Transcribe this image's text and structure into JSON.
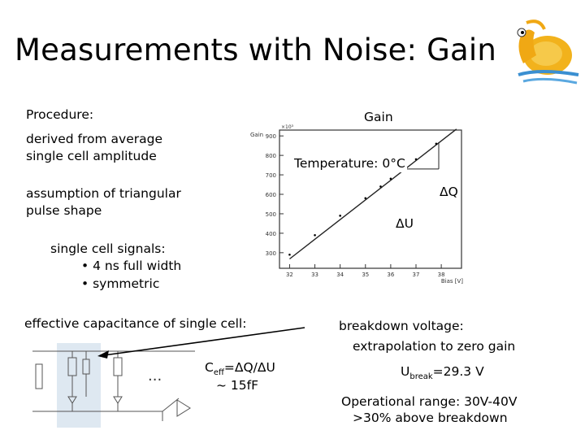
{
  "slide": {
    "title": "Measurements with Noise: Gain",
    "procedure_label": "Procedure:",
    "gain_label": "Gain",
    "derived_line1": "derived from average",
    "derived_line2": "single cell amplitude",
    "assumption_line1": "assumption of triangular",
    "assumption_line2": "pulse shape",
    "signals_heading": "single cell signals:",
    "signals_items": [
      "4 ns full width",
      "symmetric"
    ],
    "temperature": "Temperature: 0°C",
    "delta_q": "ΔQ",
    "delta_u": "ΔU",
    "capacitance_label": "effective capacitance of single cell:",
    "ceff_prefix": "C",
    "ceff_sub": "eff",
    "ceff_rest": "=ΔQ/ΔU",
    "ceff_value": "~ 15fF",
    "breakdown_label": "breakdown voltage:",
    "breakdown_detail": "extrapolation to zero gain",
    "ubreak_prefix": "U",
    "ubreak_sub": "break",
    "ubreak_rest": "=29.3 V",
    "operational_line1": "Operational range: 30V-40V",
    "operational_line2": ">30% above breakdown"
  },
  "chart_data": {
    "type": "line",
    "title": "",
    "xlabel": "Bias [V]",
    "ylabel": "Gain",
    "y_multiplier": "×10³",
    "x_ticks": [
      32,
      33,
      34,
      35,
      36,
      37,
      38
    ],
    "y_ticks": [
      300,
      400,
      500,
      600,
      700,
      800,
      900
    ],
    "xlim": [
      31.6,
      38.8
    ],
    "ylim": [
      220,
      930
    ],
    "series": [
      {
        "x": [
          32.0,
          33.0,
          34.0,
          35.0,
          35.6,
          36.0,
          37.0,
          37.8
        ],
        "y": [
          290,
          390,
          490,
          580,
          640,
          680,
          780,
          860
        ]
      }
    ],
    "fit_line": {
      "x": [
        32.0,
        38.6
      ],
      "y": [
        268,
        935
      ]
    }
  },
  "colors": {
    "arrow": "#000000",
    "logo_body": "#f2b21c",
    "logo_water": "#3a8fd1"
  },
  "icons": {
    "logo": "snail-logo",
    "circuit": "circuit-diagram"
  }
}
